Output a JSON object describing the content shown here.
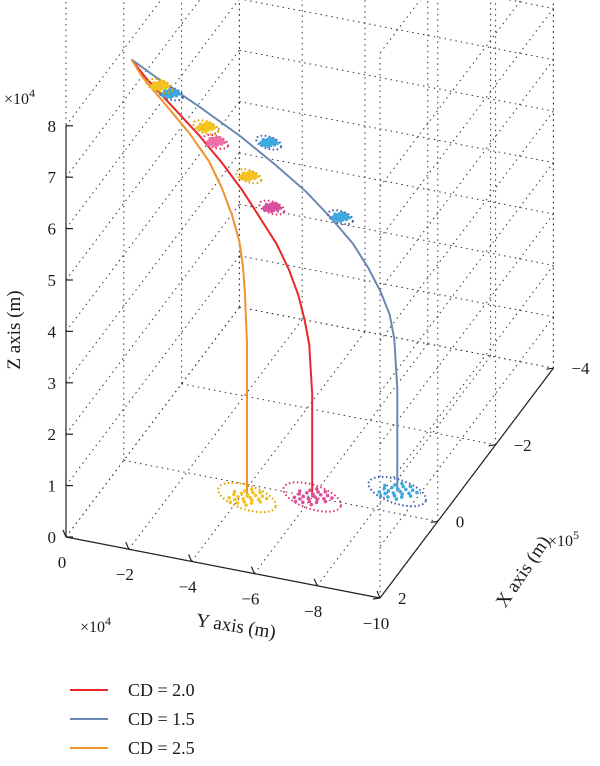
{
  "chart_data": {
    "type": "line",
    "projection": "3d",
    "title": "",
    "xlabel": "X axis (m)",
    "ylabel": "Y axis (m)",
    "zlabel": "Z axis (m)",
    "x_ticks": [
      "2",
      "0",
      "−2",
      "−4"
    ],
    "x_multiplier": "×10",
    "x_multiplier_exp": "5",
    "y_ticks": [
      "0",
      "−2",
      "−4",
      "−6",
      "−8",
      "−10"
    ],
    "y_multiplier": "×10",
    "y_multiplier_exp": "4",
    "z_ticks": [
      "0",
      "1",
      "2",
      "3",
      "4",
      "5",
      "6",
      "7",
      "8"
    ],
    "z_multiplier": "×10",
    "z_multiplier_exp": "4",
    "xlim": [
      -4,
      2
    ],
    "ylim": [
      -10,
      0
    ],
    "zlim": [
      0,
      8
    ],
    "units": {
      "x": 100000,
      "y": 10000,
      "z": 10000
    },
    "grid": true,
    "legend_position": "bottom-left",
    "series": [
      {
        "name": "CD = 2.0",
        "color": "#e8262a",
        "points": [
          [
            0.55,
            -0.75,
            8.3
          ],
          [
            0.55,
            -1.2,
            8.0
          ],
          [
            0.5,
            -2.0,
            7.5
          ],
          [
            0.45,
            -2.8,
            7.0
          ],
          [
            0.4,
            -3.5,
            6.5
          ],
          [
            0.35,
            -4.1,
            6.0
          ],
          [
            0.3,
            -4.6,
            5.5
          ],
          [
            0.25,
            -5.1,
            5.0
          ],
          [
            0.2,
            -5.45,
            4.5
          ],
          [
            0.15,
            -5.7,
            4.0
          ],
          [
            0.1,
            -5.85,
            3.5
          ],
          [
            0.05,
            -5.95,
            3.0
          ],
          [
            0.0,
            -6.0,
            2.0
          ],
          [
            0.0,
            -6.0,
            1.0
          ],
          [
            0.0,
            -6.0,
            0.0
          ]
        ],
        "scatter_clusters": [
          [
            0.3,
            -3.2,
            6.8
          ],
          [
            0.2,
            -4.9,
            5.65
          ],
          [
            0.0,
            -6.0,
            0.0
          ]
        ],
        "cluster_colors": [
          "#ef6fa8",
          "#d94fa0",
          "#e04f9a"
        ]
      },
      {
        "name": "CD = 1.5",
        "color": "#6a88b4",
        "points": [
          [
            0.55,
            -0.75,
            8.3
          ],
          [
            0.5,
            -1.5,
            8.0
          ],
          [
            0.4,
            -2.8,
            7.5
          ],
          [
            0.3,
            -4.0,
            7.0
          ],
          [
            0.2,
            -5.0,
            6.5
          ],
          [
            0.1,
            -5.9,
            6.0
          ],
          [
            0.0,
            -6.6,
            5.5
          ],
          [
            -0.1,
            -7.2,
            5.0
          ],
          [
            -0.2,
            -7.6,
            4.5
          ],
          [
            -0.3,
            -7.9,
            4.0
          ],
          [
            -0.4,
            -8.1,
            3.5
          ],
          [
            -0.45,
            -8.2,
            3.0
          ],
          [
            -0.5,
            -8.25,
            2.0
          ],
          [
            -0.5,
            -8.25,
            1.0
          ],
          [
            -0.5,
            -8.25,
            0.0
          ]
        ],
        "scatter_clusters": [
          [
            0.45,
            -1.9,
            7.7
          ],
          [
            0.2,
            -4.8,
            6.9
          ],
          [
            0.0,
            -6.9,
            5.55
          ],
          [
            -0.5,
            -8.25,
            0.0
          ]
        ],
        "cluster_colors": [
          "#3da9df",
          "#3da9df",
          "#3da9df",
          "#3da9df"
        ]
      },
      {
        "name": "CD = 2.5",
        "color": "#f0922c",
        "points": [
          [
            0.55,
            -0.75,
            8.3
          ],
          [
            0.55,
            -1.1,
            8.0
          ],
          [
            0.5,
            -1.8,
            7.5
          ],
          [
            0.45,
            -2.5,
            7.0
          ],
          [
            0.42,
            -3.1,
            6.5
          ],
          [
            0.4,
            -3.5,
            6.0
          ],
          [
            0.38,
            -3.8,
            5.5
          ],
          [
            0.35,
            -4.0,
            5.0
          ],
          [
            0.33,
            -4.1,
            4.5
          ],
          [
            0.32,
            -4.15,
            4.0
          ],
          [
            0.3,
            -4.2,
            3.0
          ],
          [
            0.3,
            -4.2,
            2.0
          ],
          [
            0.3,
            -4.2,
            1.0
          ],
          [
            0.3,
            -4.2,
            0.0
          ]
        ],
        "scatter_clusters": [
          [
            0.5,
            -1.6,
            7.85
          ],
          [
            0.42,
            -3.0,
            7.15
          ],
          [
            0.35,
            -4.3,
            6.3
          ],
          [
            0.3,
            -4.2,
            0.0
          ]
        ],
        "cluster_colors": [
          "#f4c320",
          "#f4c320",
          "#f4c320",
          "#f4c320"
        ]
      }
    ]
  }
}
